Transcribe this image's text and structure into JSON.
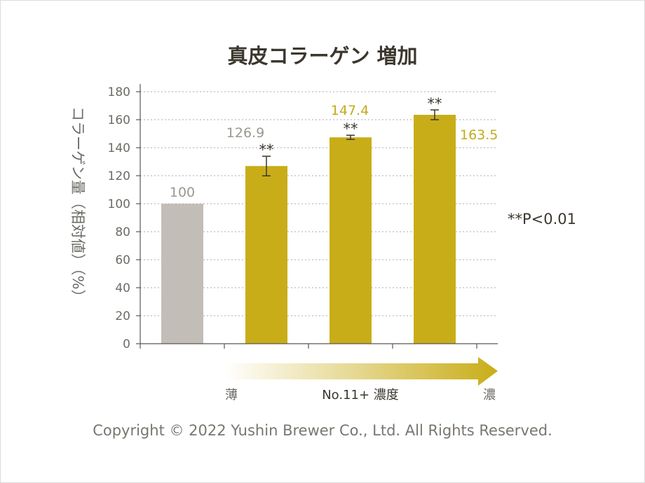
{
  "colors": {
    "control": "#c2beb7",
    "treatment": "#c9ad18",
    "gradient_start": "#ffffff",
    "grid": "#a8a8a8",
    "text": "#3b372e"
  },
  "chart_data": {
    "type": "bar",
    "title": "真皮コラーゲン 増加",
    "ylabel": "コラーゲン量（相対値）（%）",
    "ylim": [
      0,
      180
    ],
    "yticks": [
      "0",
      "20",
      "40",
      "60",
      "80",
      "100",
      "120",
      "140",
      "160",
      "180"
    ],
    "grid": true,
    "categories": [
      "",
      "",
      "",
      ""
    ],
    "values": [
      100,
      126.9,
      147.4,
      163.5
    ],
    "value_labels": [
      "100",
      "126.9",
      "147.4",
      "163.5"
    ],
    "error": [
      0,
      7,
      1.5,
      3.5
    ],
    "significance": [
      "",
      "**",
      "**",
      "**"
    ],
    "significance_note": "**P<0.01",
    "x_arrow": {
      "label": "No.11+ 濃度",
      "low": "薄",
      "high": "濃"
    }
  },
  "copyright": "Copyright © 2022 Yushin Brewer Co., Ltd. All Rights Reserved."
}
